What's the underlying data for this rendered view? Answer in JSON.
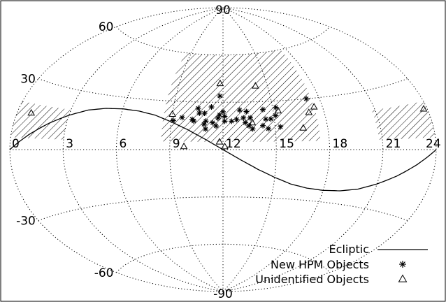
{
  "chart_data": {
    "type": "scatter",
    "projection": "aitoff",
    "title": "",
    "xlabel": "",
    "ylabel": "",
    "xlim": [
      0,
      24
    ],
    "ylim": [
      -90,
      90
    ],
    "grid": true,
    "legend_position": "bottom-right",
    "x_ticks": [
      "0",
      "3",
      "6",
      "9",
      "12",
      "15",
      "18",
      "21",
      "24"
    ],
    "y_ticks": [
      "60",
      "30",
      "-30",
      "-60"
    ],
    "pole_labels": {
      "north": "90",
      "south": "-90"
    },
    "survey_region": {
      "description": "hatched survey area",
      "ra_range": [
        8.5,
        17.5
      ],
      "dec_range": [
        5,
        60
      ]
    },
    "side_hatches": [
      {
        "ra_range": [
          0,
          3
        ],
        "dec_range": [
          5,
          20
        ]
      },
      {
        "ra_range": [
          20.8,
          24
        ],
        "dec_range": [
          5,
          20
        ]
      }
    ],
    "series": [
      {
        "name": "Ecliptic",
        "marker": "line",
        "points": [
          [
            0,
            0
          ],
          [
            1,
            6.5
          ],
          [
            2,
            12.4
          ],
          [
            3,
            17.2
          ],
          [
            4,
            20.9
          ],
          [
            5,
            22.8
          ],
          [
            6,
            23.4
          ],
          [
            7,
            22.8
          ],
          [
            8,
            20.9
          ],
          [
            9,
            17.2
          ],
          [
            10,
            12.4
          ],
          [
            11,
            6.5
          ],
          [
            12,
            0
          ],
          [
            13,
            -6.5
          ],
          [
            14,
            -12.4
          ],
          [
            15,
            -17.2
          ],
          [
            16,
            -20.9
          ],
          [
            17,
            -22.8
          ],
          [
            18,
            -23.4
          ],
          [
            19,
            -22.8
          ],
          [
            20,
            -20.9
          ],
          [
            21,
            -17.2
          ],
          [
            22,
            -12.4
          ],
          [
            23,
            -6.5
          ],
          [
            24,
            0
          ]
        ]
      },
      {
        "name": "New HPM Objects",
        "marker": "asterisk",
        "points": [
          [
            9.1,
            18
          ],
          [
            9.6,
            20
          ],
          [
            10.2,
            19
          ],
          [
            10.5,
            26
          ],
          [
            10.3,
            18
          ],
          [
            10.6,
            23
          ],
          [
            10.9,
            23
          ],
          [
            10.9,
            16
          ],
          [
            11.0,
            18
          ],
          [
            11.0,
            13
          ],
          [
            11.3,
            27
          ],
          [
            11.4,
            17
          ],
          [
            11.6,
            15
          ],
          [
            11.7,
            20
          ],
          [
            11.8,
            22
          ],
          [
            11.8,
            34
          ],
          [
            12.0,
            24
          ],
          [
            12.1,
            18
          ],
          [
            12.1,
            21
          ],
          [
            12.5,
            18
          ],
          [
            12.8,
            19
          ],
          [
            13.0,
            25
          ],
          [
            13.2,
            20
          ],
          [
            13.3,
            17
          ],
          [
            13.4,
            24
          ],
          [
            13.5,
            15
          ],
          [
            13.6,
            20
          ],
          [
            13.7,
            13
          ],
          [
            14.3,
            15
          ],
          [
            14.4,
            25
          ],
          [
            14.5,
            19
          ],
          [
            14.6,
            13
          ],
          [
            14.8,
            19
          ],
          [
            15.1,
            21
          ],
          [
            15.2,
            26
          ],
          [
            15.3,
            14
          ],
          [
            17.2,
            30
          ]
        ]
      },
      {
        "name": "Unidentified Objects",
        "marker": "triangle",
        "points": [
          [
            0.8,
            16
          ],
          [
            9.0,
            22
          ],
          [
            9.8,
            2
          ],
          [
            11.8,
            5
          ],
          [
            11.8,
            42
          ],
          [
            12.1,
            2
          ],
          [
            13.7,
            17
          ],
          [
            14.2,
            40
          ],
          [
            15.3,
            24
          ],
          [
            16.6,
            13
          ],
          [
            17.1,
            22
          ],
          [
            17.5,
            25
          ],
          [
            23.8,
            17
          ]
        ]
      }
    ]
  }
}
